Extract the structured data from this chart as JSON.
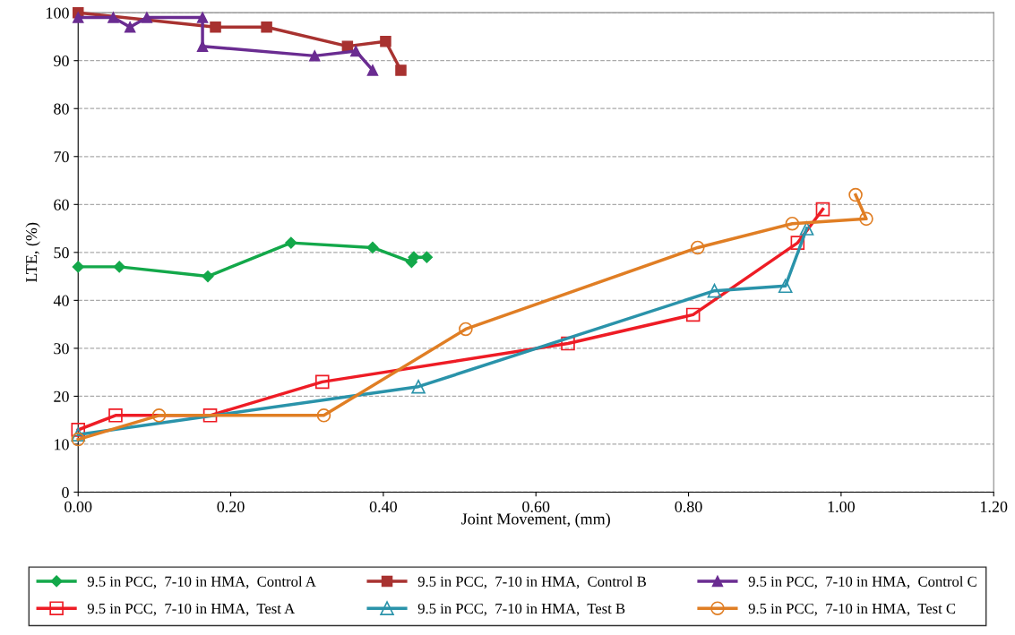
{
  "chart_data": {
    "type": "line",
    "xlabel": "Joint Movement, (mm)",
    "ylabel": "LTE, (%)",
    "xlim": [
      0,
      1.2
    ],
    "ylim": [
      0,
      100
    ],
    "xticks": [
      {
        "value": 0,
        "label": "0.00"
      },
      {
        "value": 0.2,
        "label": "0.20"
      },
      {
        "value": 0.4,
        "label": "0.40"
      },
      {
        "value": 0.6,
        "label": "0.60"
      },
      {
        "value": 0.8,
        "label": "0.80"
      },
      {
        "value": 1.0,
        "label": "1.00"
      },
      {
        "value": 1.2,
        "label": "1.20"
      }
    ],
    "yticks": [
      0,
      10,
      20,
      30,
      40,
      50,
      60,
      70,
      80,
      90,
      100
    ],
    "grid": "y",
    "legend": "bottom",
    "series": [
      {
        "name": "9.5 in PCC,  7-10 in HMA,  Control A",
        "color": "#13a84a",
        "marker": "diamond",
        "x": [
          0,
          0.054,
          0.17,
          0.279,
          0.386,
          0.437,
          0.44,
          0.457
        ],
        "values": [
          47,
          47,
          45,
          52,
          51,
          48,
          49,
          49
        ]
      },
      {
        "name": "9.5 in PCC,  7-10 in HMA,  Control B",
        "color": "#a83230",
        "marker": "square",
        "x": [
          0,
          0.18,
          0.247,
          0.353,
          0.403,
          0.423
        ],
        "values": [
          100,
          97,
          97,
          93,
          94,
          88
        ]
      },
      {
        "name": "9.5 in PCC,  7-10 in HMA,  Control C",
        "color": "#6a2c91",
        "marker": "triangle",
        "x": [
          0,
          0.046,
          0.068,
          0.09,
          0.163,
          0.163,
          0.31,
          0.364,
          0.386
        ],
        "values": [
          99,
          99,
          97,
          99,
          99,
          93,
          91,
          92,
          88
        ]
      },
      {
        "name": "9.5 in PCC,  7-10 in HMA,  Test A",
        "color": "#ee1c25",
        "marker": "square",
        "x": [
          0,
          0.049,
          0.173,
          0.32,
          0.642,
          0.806,
          0.943,
          0.976
        ],
        "values": [
          13,
          16,
          16,
          23,
          31,
          37,
          52,
          59
        ]
      },
      {
        "name": "9.5 in PCC,  7-10 in HMA,  Test B",
        "color": "#2a93aa",
        "marker": "triangle",
        "x": [
          0,
          0.446,
          0.834,
          0.927,
          0.955
        ],
        "values": [
          12,
          22,
          42,
          43,
          55
        ]
      },
      {
        "name": "9.5 in PCC,  7-10 in HMA,  Test C",
        "color": "#e07e24",
        "marker": "circle",
        "x": [
          0,
          0.106,
          0.322,
          0.508,
          0.812,
          0.936,
          1.033,
          1.019
        ],
        "values": [
          11,
          16,
          16,
          34,
          51,
          56,
          57,
          62
        ]
      }
    ]
  }
}
